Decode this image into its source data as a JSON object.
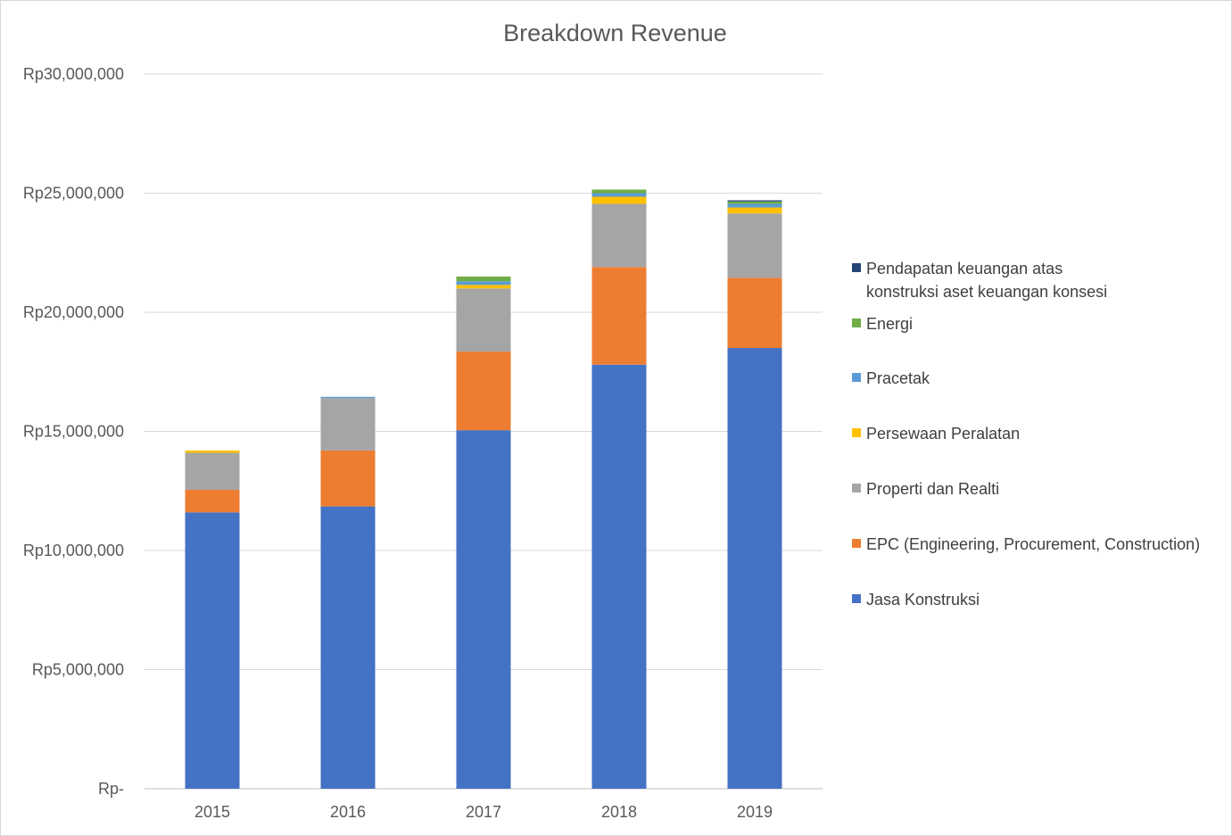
{
  "chart_data": {
    "type": "bar",
    "stacked": true,
    "title": "Breakdown Revenue",
    "xlabel": "",
    "ylabel": "",
    "categories": [
      "2015",
      "2016",
      "2017",
      "2018",
      "2019"
    ],
    "ylim": [
      0,
      30000000
    ],
    "yticks": [
      0,
      5000000,
      10000000,
      15000000,
      20000000,
      25000000,
      30000000
    ],
    "ytick_labels": [
      "Rp-",
      "Rp5,000,000",
      "Rp10,000,000",
      "Rp15,000,000",
      "Rp20,000,000",
      "Rp25,000,000",
      "Rp30,000,000"
    ],
    "grid": true,
    "legend_position": "right",
    "series": [
      {
        "name": "Jasa Konstruksi",
        "color": "#4472C4",
        "values": [
          11600000,
          11850000,
          15050000,
          17800000,
          18500000
        ]
      },
      {
        "name": "EPC (Engineering, Procurement, Construction)",
        "color": "#ED7D31",
        "values": [
          950000,
          2350000,
          3300000,
          4100000,
          2950000
        ]
      },
      {
        "name": "Properti dan Realti",
        "color": "#A5A5A5",
        "values": [
          1550000,
          2200000,
          2650000,
          2650000,
          2700000
        ]
      },
      {
        "name": "Persewaan Peralatan",
        "color": "#FFC000",
        "values": [
          100000,
          0,
          150000,
          300000,
          250000
        ]
      },
      {
        "name": "Pracetak",
        "color": "#5B9BD5",
        "values": [
          0,
          50000,
          150000,
          150000,
          150000
        ]
      },
      {
        "name": "Energi",
        "color": "#70AD47",
        "values": [
          0,
          0,
          200000,
          150000,
          100000
        ]
      },
      {
        "name": "Pendapatan keuangan atas konstruksi aset keuangan konsesi",
        "color": "#264478",
        "values": [
          0,
          0,
          0,
          0,
          50000
        ]
      }
    ]
  }
}
